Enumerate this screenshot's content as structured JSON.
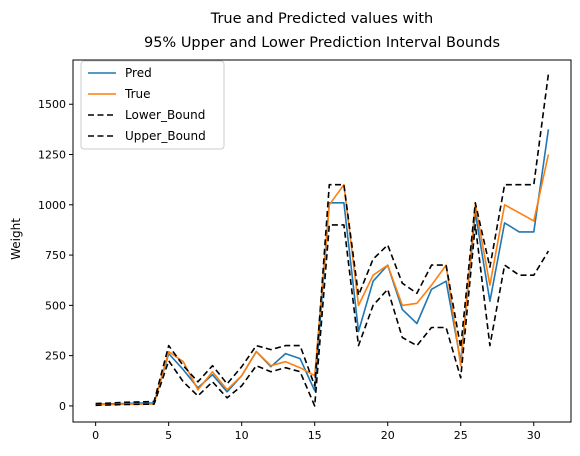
{
  "chart_data": {
    "type": "line",
    "title_line1": "True and Predicted values with",
    "title_line2": "95% Upper and Lower Prediction Interval Bounds",
    "xlabel": "",
    "ylabel": "Weight",
    "xlim": [
      -1.55,
      32.55
    ],
    "ylim": [
      -80,
      1720
    ],
    "xticks": [
      0,
      5,
      10,
      15,
      20,
      25,
      30
    ],
    "yticks": [
      0,
      250,
      500,
      750,
      1000,
      1250,
      1500
    ],
    "grid": false,
    "legend_position": "top-left",
    "x": [
      0,
      1,
      2,
      3,
      4,
      5,
      6,
      7,
      8,
      9,
      10,
      11,
      12,
      13,
      14,
      15,
      16,
      17,
      18,
      19,
      20,
      21,
      22,
      23,
      24,
      25,
      26,
      27,
      28,
      29,
      30,
      31
    ],
    "series": [
      {
        "name": "Pred",
        "color": "#1f77b4",
        "dash": "solid",
        "values": [
          8,
          10,
          12,
          14,
          15,
          260,
          180,
          90,
          155,
          70,
          150,
          270,
          195,
          260,
          235,
          75,
          1010,
          1010,
          370,
          620,
          700,
          480,
          410,
          580,
          620,
          220,
          960,
          520,
          910,
          865,
          865,
          1375
        ]
      },
      {
        "name": "True",
        "color": "#ff7f0e",
        "dash": "solid",
        "values": [
          6,
          7,
          9,
          9,
          10,
          270,
          220,
          80,
          170,
          80,
          150,
          270,
          200,
          220,
          190,
          150,
          1000,
          1100,
          500,
          650,
          700,
          500,
          510,
          600,
          700,
          200,
          1000,
          600,
          1000,
          960,
          920,
          1250
        ]
      },
      {
        "name": "Lower_Bound",
        "color": "#000000",
        "dash": "dashed",
        "values": [
          3,
          5,
          7,
          8,
          9,
          225,
          120,
          50,
          120,
          40,
          100,
          200,
          170,
          190,
          170,
          0,
          900,
          900,
          300,
          500,
          580,
          340,
          300,
          390,
          390,
          140,
          900,
          300,
          700,
          650,
          650,
          770
        ]
      },
      {
        "name": "Upper_Bound",
        "color": "#000000",
        "dash": "dashed",
        "values": [
          12,
          14,
          18,
          20,
          22,
          300,
          200,
          120,
          200,
          110,
          195,
          300,
          280,
          300,
          300,
          100,
          1100,
          1100,
          550,
          730,
          800,
          610,
          560,
          700,
          700,
          290,
          1010,
          690,
          1100,
          1100,
          1100,
          1650
        ]
      }
    ]
  }
}
